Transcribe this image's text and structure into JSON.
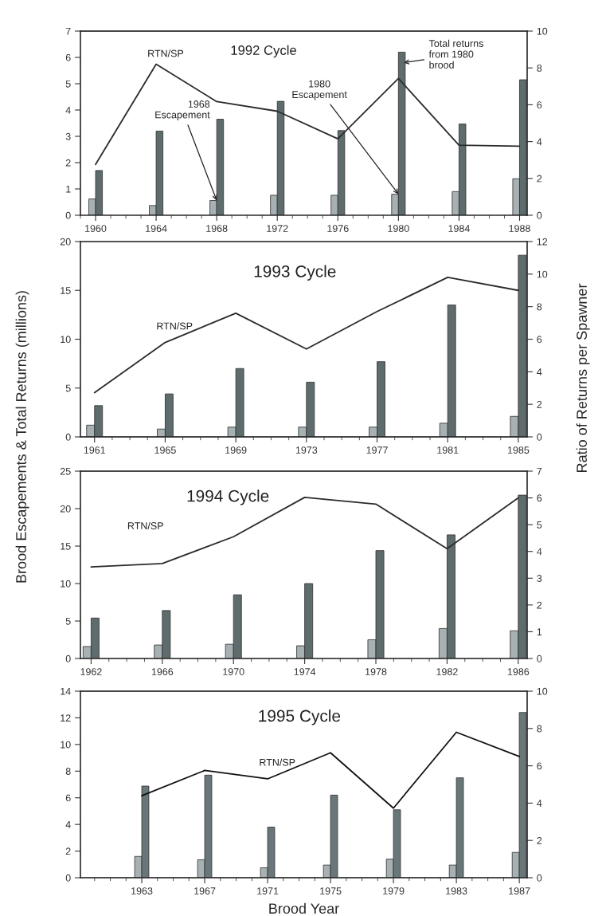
{
  "chart_data": [
    {
      "type": "bar",
      "title": "1992 Cycle",
      "xlim": [
        1959,
        1988.5
      ],
      "xticks": [
        {
          "value": 1959,
          "label": null
        },
        1960,
        {
          "value": 1961,
          "label": null
        },
        {
          "value": 1962,
          "label": null
        },
        {
          "value": 1963,
          "label": null
        },
        1964,
        {
          "value": 1965,
          "label": null
        },
        {
          "value": 1966,
          "label": null
        },
        {
          "value": 1967,
          "label": null
        },
        1968,
        {
          "value": 1969,
          "label": null
        },
        {
          "value": 1970,
          "label": null
        },
        {
          "value": 1971,
          "label": null
        },
        1972,
        {
          "value": 1973,
          "label": null
        },
        {
          "value": 1974,
          "label": null
        },
        {
          "value": 1975,
          "label": null
        },
        1976,
        {
          "value": 1977,
          "label": null
        },
        {
          "value": 1978,
          "label": null
        },
        {
          "value": 1979,
          "label": null
        },
        1980,
        {
          "value": 1981,
          "label": null
        },
        {
          "value": 1982,
          "label": null
        },
        {
          "value": 1983,
          "label": null
        },
        1984,
        {
          "value": 1985,
          "label": null
        },
        {
          "value": 1986,
          "label": null
        },
        {
          "value": 1987,
          "label": null
        },
        1988
      ],
      "ylim": [
        0,
        7
      ],
      "yticks": [
        0,
        1,
        2,
        3,
        4,
        5,
        6,
        7
      ],
      "y2lim": [
        0,
        10
      ],
      "y2ticks": [
        0,
        2,
        4,
        6,
        8,
        10
      ],
      "series": [
        {
          "color": "#a7b1b3",
          "x": [
            1960,
            1964,
            1968,
            1972,
            1976,
            1980,
            1984,
            1988
          ],
          "values": [
            0.62,
            0.37,
            0.56,
            0.76,
            0.76,
            0.8,
            0.9,
            1.39
          ]
        },
        {
          "color": "#5f6c6e",
          "x": [
            1960,
            1964,
            1968,
            1972,
            1976,
            1980,
            1984,
            1988
          ],
          "values": [
            1.7,
            3.2,
            3.65,
            4.33,
            3.22,
            6.2,
            3.47,
            5.15
          ]
        },
        {
          "type": "line",
          "axis": "y2",
          "name": "RTN/SP",
          "color": "#2b2b2b",
          "x": [
            1960,
            1964,
            1968,
            1972,
            1976,
            1980,
            1984,
            1988
          ],
          "values": [
            2.76,
            8.2,
            6.17,
            5.65,
            4.15,
            7.43,
            3.8,
            3.75
          ]
        }
      ],
      "annotations": [
        {
          "text": "1968\nEscapement",
          "x": 1968,
          "y": 0.56
        },
        {
          "text": "1980\nEscapement",
          "x": 1980,
          "y": 0.8
        },
        {
          "text": "Total returns\nfrom 1980\nbrood",
          "x": 1980.35,
          "y": 5.8
        }
      ]
    },
    {
      "type": "bar",
      "title": "1993 Cycle",
      "ylabel": "Brood Escapements & Total Returns (millions)",
      "y2label": "Ratio of Returns per Spawner",
      "xlim": [
        1960.2,
        1985.5
      ],
      "xticks": [
        1961,
        {
          "value": 1962,
          "label": null
        },
        {
          "value": 1963,
          "label": null
        },
        {
          "value": 1964,
          "label": null
        },
        1965,
        {
          "value": 1966,
          "label": null
        },
        {
          "value": 1967,
          "label": null
        },
        {
          "value": 1968,
          "label": null
        },
        1969,
        {
          "value": 1970,
          "label": null
        },
        {
          "value": 1971,
          "label": null
        },
        {
          "value": 1972,
          "label": null
        },
        1973,
        {
          "value": 1974,
          "label": null
        },
        {
          "value": 1975,
          "label": null
        },
        {
          "value": 1976,
          "label": null
        },
        1977,
        {
          "value": 1978,
          "label": null
        },
        {
          "value": 1979,
          "label": null
        },
        {
          "value": 1980,
          "label": null
        },
        1981,
        {
          "value": 1982,
          "label": null
        },
        {
          "value": 1983,
          "label": null
        },
        {
          "value": 1984,
          "label": null
        },
        1985
      ],
      "ylim": [
        0,
        20
      ],
      "yticks": [
        0,
        5,
        10,
        15,
        20
      ],
      "y2lim": [
        0,
        12
      ],
      "y2ticks": [
        0,
        2,
        4,
        6,
        8,
        10,
        12
      ],
      "series": [
        {
          "color": "#a7b1b3",
          "x": [
            1961,
            1965,
            1969,
            1973,
            1977,
            1981,
            1985
          ],
          "values": [
            1.2,
            0.8,
            1.0,
            1.0,
            1.0,
            1.4,
            2.1
          ]
        },
        {
          "color": "#5f6c6e",
          "x": [
            1961,
            1965,
            1969,
            1973,
            1977,
            1981,
            1985
          ],
          "values": [
            3.2,
            4.4,
            7.0,
            5.6,
            7.7,
            13.5,
            18.6
          ]
        },
        {
          "type": "line",
          "axis": "y2",
          "name": "RTN/SP",
          "color": "#2b2b2b",
          "x": [
            1961,
            1965,
            1969,
            1973,
            1977,
            1981,
            1985
          ],
          "values": [
            2.72,
            5.8,
            7.6,
            5.4,
            7.7,
            9.8,
            9.0
          ]
        }
      ]
    },
    {
      "type": "bar",
      "title": "1994 Cycle",
      "xlim": [
        1961.4,
        1986.5
      ],
      "xticks": [
        1962,
        {
          "value": 1963,
          "label": null
        },
        {
          "value": 1964,
          "label": null
        },
        {
          "value": 1965,
          "label": null
        },
        1966,
        {
          "value": 1967,
          "label": null
        },
        {
          "value": 1968,
          "label": null
        },
        {
          "value": 1969,
          "label": null
        },
        1970,
        {
          "value": 1971,
          "label": null
        },
        {
          "value": 1972,
          "label": null
        },
        {
          "value": 1973,
          "label": null
        },
        1974,
        {
          "value": 1975,
          "label": null
        },
        {
          "value": 1976,
          "label": null
        },
        {
          "value": 1977,
          "label": null
        },
        1978,
        {
          "value": 1979,
          "label": null
        },
        {
          "value": 1980,
          "label": null
        },
        {
          "value": 1981,
          "label": null
        },
        1982,
        {
          "value": 1983,
          "label": null
        },
        {
          "value": 1984,
          "label": null
        },
        {
          "value": 1985,
          "label": null
        },
        1986
      ],
      "ylim": [
        0,
        25
      ],
      "yticks": [
        0,
        5,
        10,
        15,
        20,
        25
      ],
      "y2lim": [
        0,
        7
      ],
      "y2ticks": [
        0,
        1,
        2,
        3,
        4,
        5,
        6,
        7
      ],
      "series": [
        {
          "color": "#a7b1b3",
          "x": [
            1962,
            1966,
            1970,
            1974,
            1978,
            1982,
            1986
          ],
          "values": [
            1.6,
            1.8,
            1.9,
            1.7,
            2.5,
            4.0,
            3.7
          ]
        },
        {
          "color": "#5f6c6e",
          "x": [
            1962,
            1966,
            1970,
            1974,
            1978,
            1982,
            1986
          ],
          "values": [
            5.4,
            6.4,
            8.5,
            10.0,
            14.4,
            16.5,
            21.8
          ]
        },
        {
          "type": "line",
          "axis": "y2",
          "name": "RTN/SP",
          "color": "#2b2b2b",
          "x": [
            1962,
            1966,
            1970,
            1974,
            1978,
            1982,
            1986
          ],
          "values": [
            3.42,
            3.55,
            4.55,
            6.02,
            5.77,
            4.1,
            6.0
          ]
        }
      ]
    },
    {
      "type": "bar",
      "title": "1995 Cycle",
      "xlabel": "Brood Year",
      "xlim": [
        1959.1,
        1987.5
      ],
      "xticks": [
        {
          "value": 1960,
          "label": null
        },
        {
          "value": 1961,
          "label": null
        },
        {
          "value": 1962,
          "label": null
        },
        1963,
        {
          "value": 1964,
          "label": null
        },
        {
          "value": 1965,
          "label": null
        },
        {
          "value": 1966,
          "label": null
        },
        1967,
        {
          "value": 1968,
          "label": null
        },
        {
          "value": 1969,
          "label": null
        },
        {
          "value": 1970,
          "label": null
        },
        1971,
        {
          "value": 1972,
          "label": null
        },
        {
          "value": 1973,
          "label": null
        },
        {
          "value": 1974,
          "label": null
        },
        1975,
        {
          "value": 1976,
          "label": null
        },
        {
          "value": 1977,
          "label": null
        },
        {
          "value": 1978,
          "label": null
        },
        1979,
        {
          "value": 1980,
          "label": null
        },
        {
          "value": 1981,
          "label": null
        },
        {
          "value": 1982,
          "label": null
        },
        1983,
        {
          "value": 1984,
          "label": null
        },
        {
          "value": 1985,
          "label": null
        },
        {
          "value": 1986,
          "label": null
        },
        1987
      ],
      "ylim": [
        0,
        14
      ],
      "yticks": [
        0,
        2,
        4,
        6,
        8,
        10,
        12,
        14
      ],
      "y2lim": [
        0,
        10
      ],
      "y2ticks": [
        0,
        2,
        4,
        6,
        8,
        10
      ],
      "series": [
        {
          "color": "#a7b1b3",
          "x": [
            1963,
            1967,
            1971,
            1975,
            1979,
            1983,
            1987
          ],
          "values": [
            1.6,
            1.35,
            0.75,
            0.95,
            1.4,
            0.95,
            1.9
          ]
        },
        {
          "color": "#6a777a",
          "x": [
            1963,
            1967,
            1971,
            1975,
            1979,
            1983,
            1987
          ],
          "values": [
            6.88,
            7.7,
            3.8,
            6.2,
            5.1,
            7.5,
            12.4
          ]
        },
        {
          "type": "line",
          "axis": "y2",
          "name": "RTN/SP",
          "color": "#111111",
          "x": [
            1963,
            1967,
            1971,
            1975,
            1979,
            1983,
            1987
          ],
          "values": [
            4.4,
            5.75,
            5.3,
            6.7,
            3.73,
            7.8,
            6.5
          ]
        }
      ]
    }
  ]
}
